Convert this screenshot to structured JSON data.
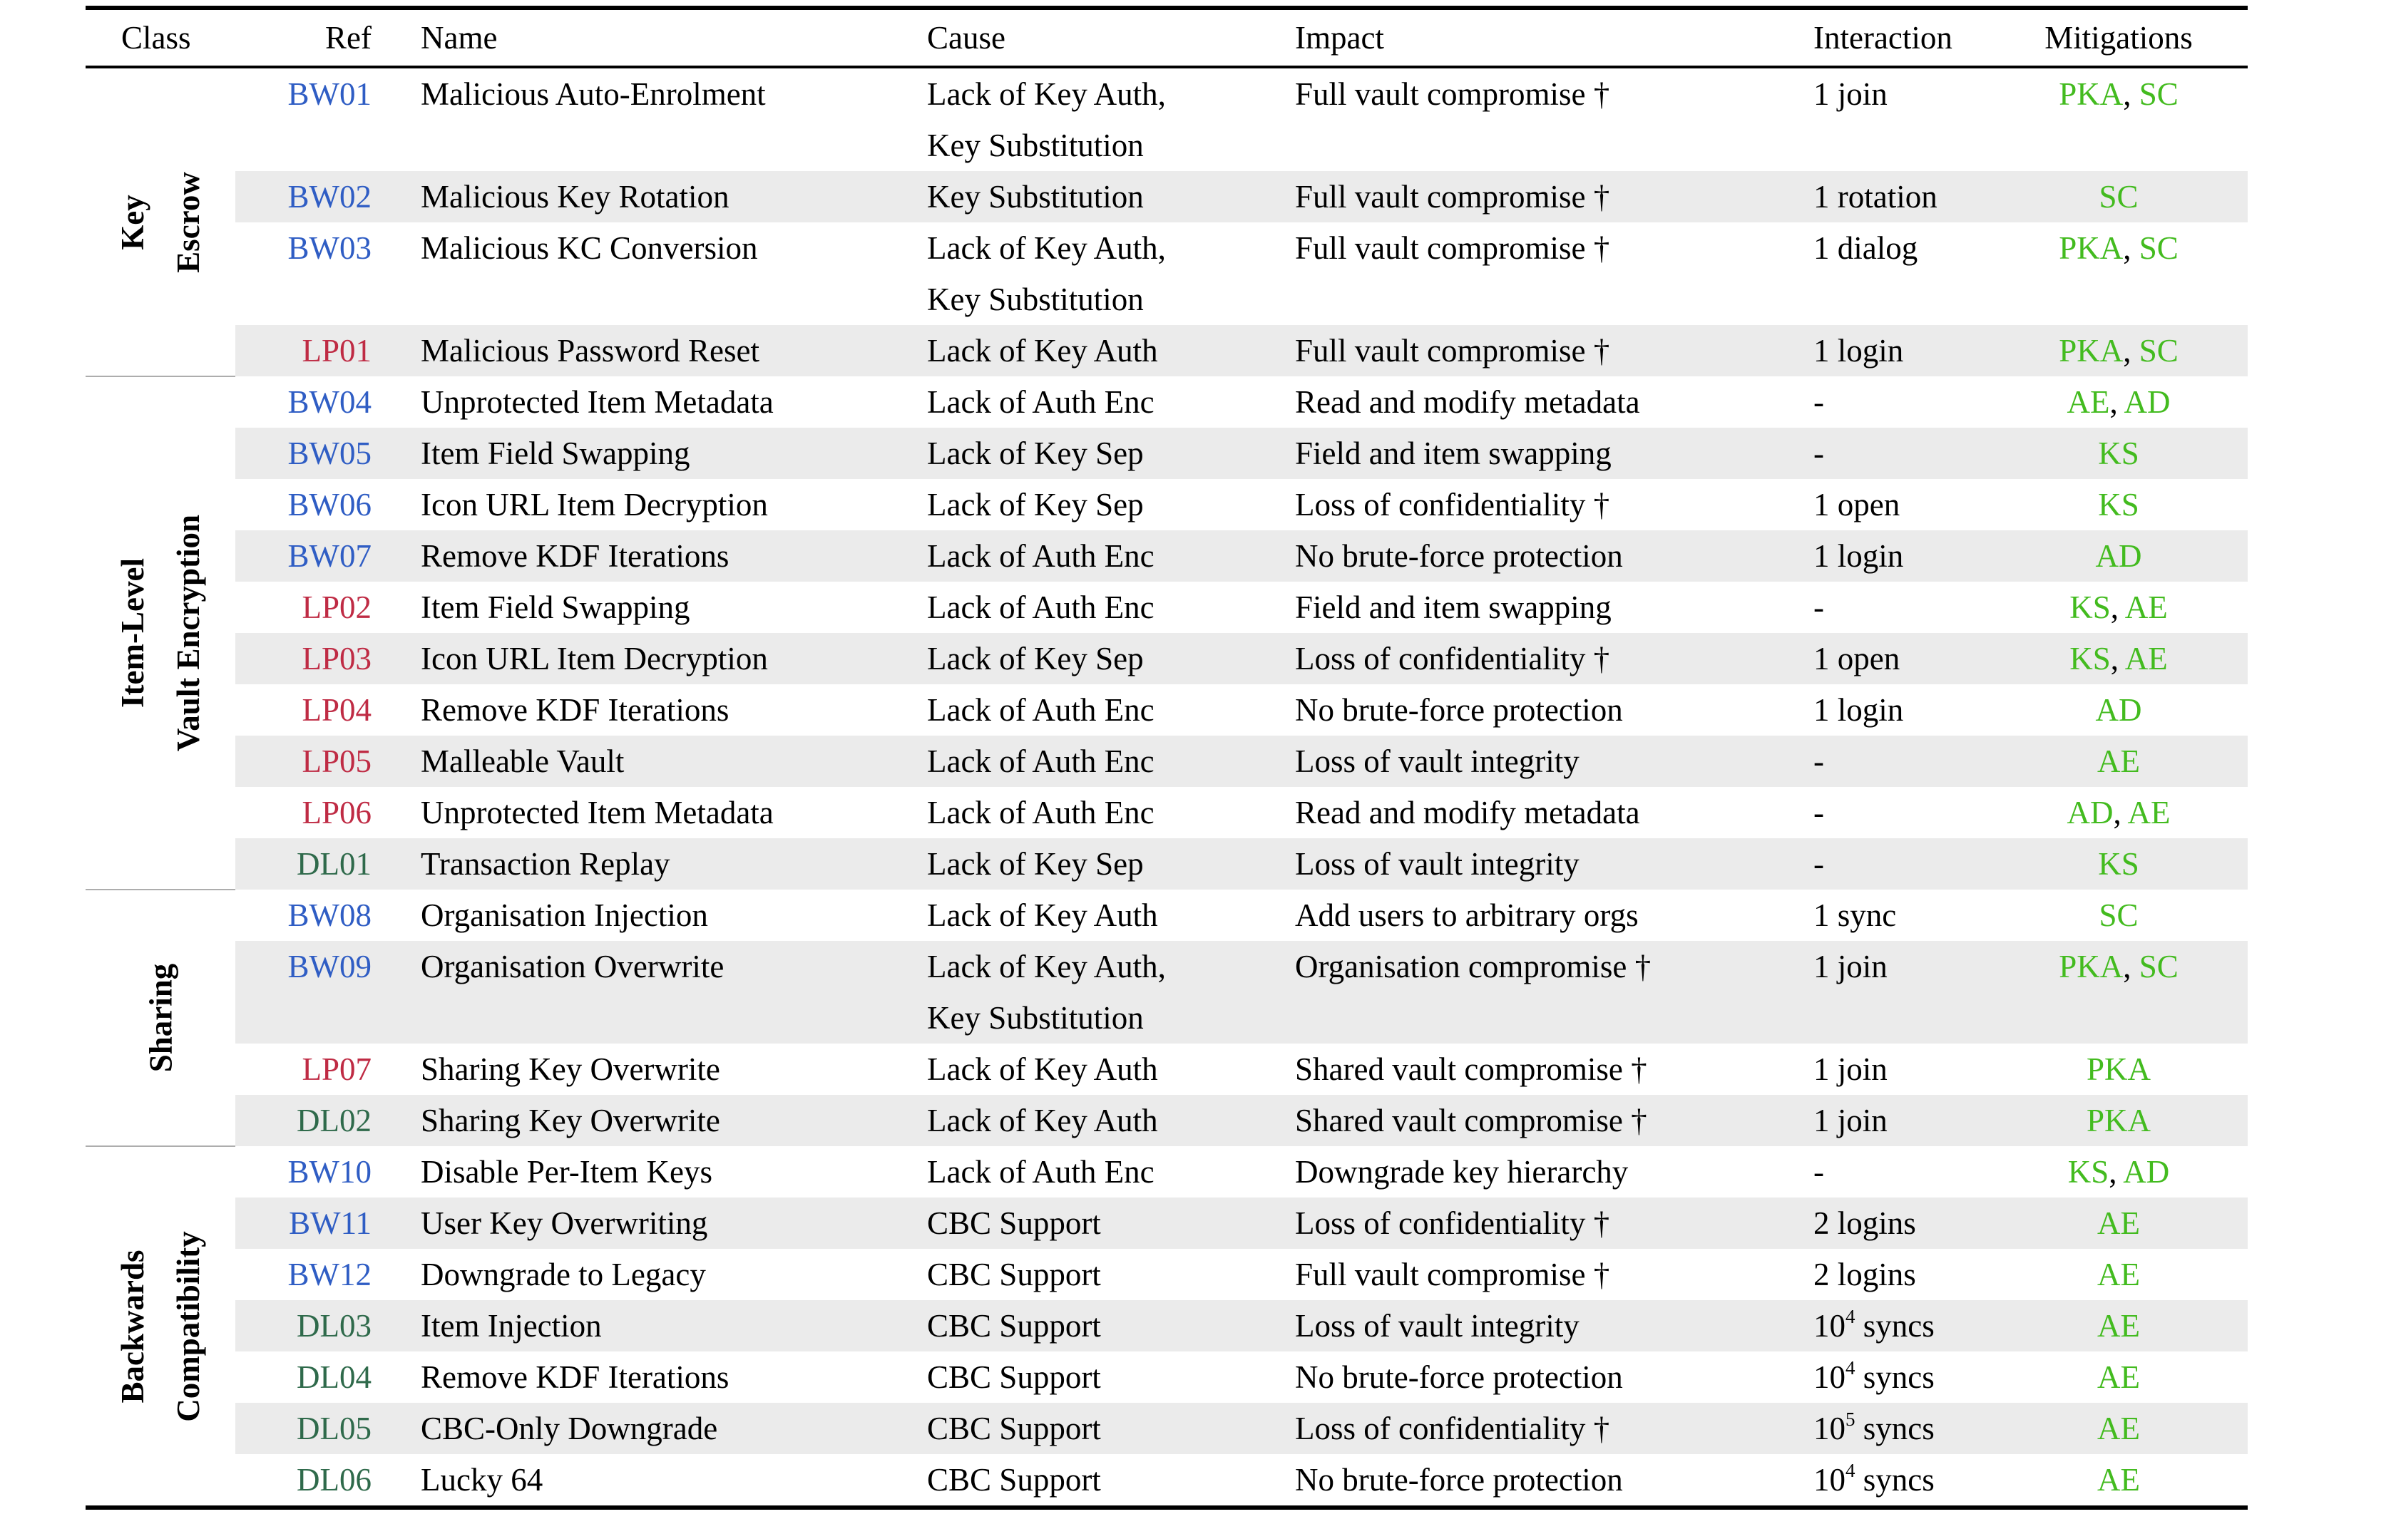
{
  "table": {
    "headers": {
      "class": "Class",
      "ref": "Ref",
      "name": "Name",
      "cause": "Cause",
      "impact": "Impact",
      "interaction": "Interaction",
      "mitigations": "Mitigations"
    },
    "colors": {
      "ref_bw": "#2F5DC4",
      "ref_lp": "#BF2B44",
      "ref_dl": "#2F6A4B",
      "mitigation_green": "#43BB1F",
      "row_stripe": "#EBEBEB",
      "group_separator": "#ADADAD",
      "rule": "#000000"
    },
    "footnote_symbol": "†",
    "groups": [
      {
        "label_lines": [
          "Key",
          "Escrow"
        ],
        "rows": [
          {
            "ref": "BW01",
            "name": "Malicious Auto-Enrolment",
            "cause": [
              "Lack of Key Auth,",
              "Key Substitution"
            ],
            "impact": "Full vault compromise †",
            "interaction": "1 join",
            "mitigations": [
              "PKA",
              "SC"
            ]
          },
          {
            "ref": "BW02",
            "name": "Malicious Key Rotation",
            "cause": [
              "Key Substitution"
            ],
            "impact": "Full vault compromise †",
            "interaction": "1 rotation",
            "mitigations": [
              "SC"
            ]
          },
          {
            "ref": "BW03",
            "name": "Malicious KC Conversion",
            "cause": [
              "Lack of Key Auth,",
              "Key Substitution"
            ],
            "impact": "Full vault compromise †",
            "interaction": "1 dialog",
            "mitigations": [
              "PKA",
              "SC"
            ]
          },
          {
            "ref": "LP01",
            "name": "Malicious Password Reset",
            "cause": [
              "Lack of Key Auth"
            ],
            "impact": "Full vault compromise †",
            "interaction": "1 login",
            "mitigations": [
              "PKA",
              "SC"
            ]
          }
        ]
      },
      {
        "label_lines": [
          "Item-Level",
          "Vault Encryption"
        ],
        "rows": [
          {
            "ref": "BW04",
            "name": "Unprotected Item Metadata",
            "cause": [
              "Lack of Auth Enc"
            ],
            "impact": "Read and modify metadata",
            "interaction": "-",
            "mitigations": [
              "AE",
              "AD"
            ]
          },
          {
            "ref": "BW05",
            "name": "Item Field Swapping",
            "cause": [
              "Lack of Key Sep"
            ],
            "impact": "Field and item swapping",
            "interaction": "-",
            "mitigations": [
              "KS"
            ]
          },
          {
            "ref": "BW06",
            "name": "Icon URL Item Decryption",
            "cause": [
              "Lack of Key Sep"
            ],
            "impact": "Loss of confidentiality †",
            "interaction": "1 open",
            "mitigations": [
              "KS"
            ]
          },
          {
            "ref": "BW07",
            "name": "Remove KDF Iterations",
            "cause": [
              "Lack of Auth Enc"
            ],
            "impact": "No brute-force protection",
            "interaction": "1 login",
            "mitigations": [
              "AD"
            ]
          },
          {
            "ref": "LP02",
            "name": "Item Field Swapping",
            "cause": [
              "Lack of Auth Enc"
            ],
            "impact": "Field and item swapping",
            "interaction": "-",
            "mitigations": [
              "KS",
              "AE"
            ]
          },
          {
            "ref": "LP03",
            "name": "Icon URL Item Decryption",
            "cause": [
              "Lack of Key Sep"
            ],
            "impact": "Loss of confidentiality †",
            "interaction": "1 open",
            "mitigations": [
              "KS",
              "AE"
            ]
          },
          {
            "ref": "LP04",
            "name": "Remove KDF Iterations",
            "cause": [
              "Lack of Auth Enc"
            ],
            "impact": "No brute-force protection",
            "interaction": "1 login",
            "mitigations": [
              "AD"
            ]
          },
          {
            "ref": "LP05",
            "name": "Malleable Vault",
            "cause": [
              "Lack of Auth Enc"
            ],
            "impact": "Loss of vault integrity",
            "interaction": "-",
            "mitigations": [
              "AE"
            ]
          },
          {
            "ref": "LP06",
            "name": "Unprotected Item Metadata",
            "cause": [
              "Lack of Auth Enc"
            ],
            "impact": "Read and modify metadata",
            "interaction": "-",
            "mitigations": [
              "AD",
              "AE"
            ]
          },
          {
            "ref": "DL01",
            "name": "Transaction Replay",
            "cause": [
              "Lack of Key Sep"
            ],
            "impact": "Loss of vault integrity",
            "interaction": "-",
            "mitigations": [
              "KS"
            ]
          }
        ]
      },
      {
        "label_lines": [
          "Sharing"
        ],
        "rows": [
          {
            "ref": "BW08",
            "name": "Organisation Injection",
            "cause": [
              "Lack of Key Auth"
            ],
            "impact": "Add users to arbitrary orgs",
            "interaction": "1 sync",
            "mitigations": [
              "SC"
            ]
          },
          {
            "ref": "BW09",
            "name": "Organisation Overwrite",
            "cause": [
              "Lack of Key Auth,",
              "Key Substitution"
            ],
            "impact": "Organisation compromise †",
            "interaction": "1 join",
            "mitigations": [
              "PKA",
              "SC"
            ]
          },
          {
            "ref": "LP07",
            "name": "Sharing Key Overwrite",
            "cause": [
              "Lack of Key Auth"
            ],
            "impact": "Shared vault compromise †",
            "interaction": "1 join",
            "mitigations": [
              "PKA"
            ]
          },
          {
            "ref": "DL02",
            "name": "Sharing Key Overwrite",
            "cause": [
              "Lack of Key Auth"
            ],
            "impact": "Shared vault compromise †",
            "interaction": "1 join",
            "mitigations": [
              "PKA"
            ]
          }
        ]
      },
      {
        "label_lines": [
          "Backwards",
          "Compatibility"
        ],
        "rows": [
          {
            "ref": "BW10",
            "name": "Disable Per-Item Keys",
            "cause": [
              "Lack of Auth Enc"
            ],
            "impact": "Downgrade key hierarchy",
            "interaction": "-",
            "mitigations": [
              "KS",
              "AD"
            ]
          },
          {
            "ref": "BW11",
            "name": "User Key Overwriting",
            "cause": [
              "CBC Support"
            ],
            "impact": "Loss of confidentiality †",
            "interaction": "2 logins",
            "mitigations": [
              "AE"
            ]
          },
          {
            "ref": "BW12",
            "name": "Downgrade to Legacy",
            "cause": [
              "CBC Support"
            ],
            "impact": "Full vault compromise †",
            "interaction": "2 logins",
            "mitigations": [
              "AE"
            ]
          },
          {
            "ref": "DL03",
            "name": "Item Injection",
            "cause": [
              "CBC Support"
            ],
            "impact": "Loss of vault integrity",
            "interaction": "10^4 syncs",
            "mitigations": [
              "AE"
            ]
          },
          {
            "ref": "DL04",
            "name": "Remove KDF Iterations",
            "cause": [
              "CBC Support"
            ],
            "impact": "No brute-force protection",
            "interaction": "10^4 syncs",
            "mitigations": [
              "AE"
            ]
          },
          {
            "ref": "DL05",
            "name": "CBC-Only Downgrade",
            "cause": [
              "CBC Support"
            ],
            "impact": "Loss of confidentiality †",
            "interaction": "10^5 syncs",
            "mitigations": [
              "AE"
            ]
          },
          {
            "ref": "DL06",
            "name": "Lucky 64",
            "cause": [
              "CBC Support"
            ],
            "impact": "No brute-force protection",
            "interaction": "10^4 syncs",
            "mitigations": [
              "AE"
            ]
          }
        ]
      }
    ]
  }
}
